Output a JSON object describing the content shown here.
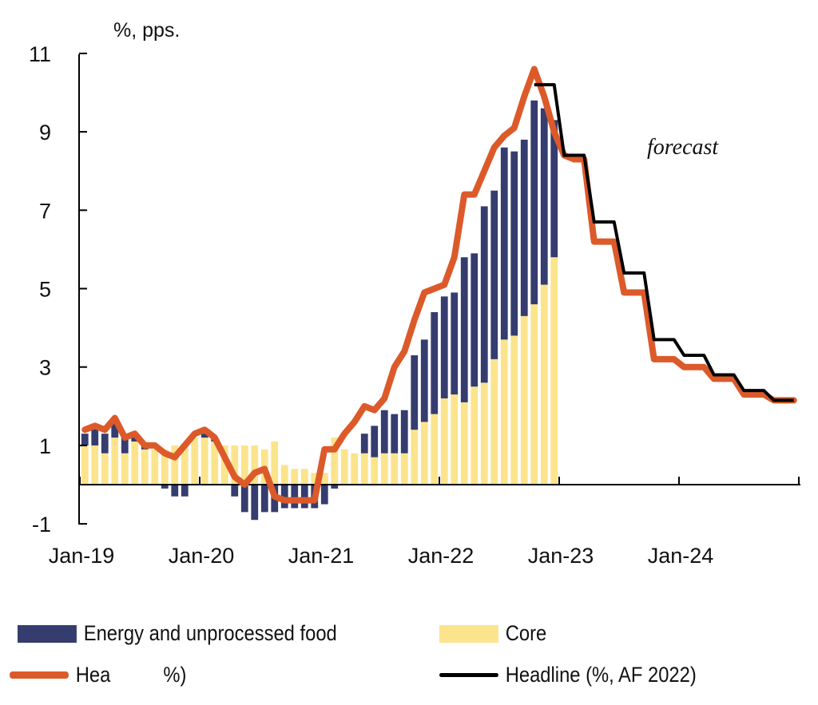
{
  "chart_data": {
    "type": "bar",
    "subtype": "stacked bar with line overlays",
    "unit_label": "%, pps.",
    "annotation": "forecast",
    "ylim": [
      -1,
      11
    ],
    "yticks": [
      -1,
      1,
      3,
      5,
      7,
      9,
      11
    ],
    "xticks": [
      "Jan-19",
      "Jan-20",
      "Jan-21",
      "Jan-22",
      "Jan-23",
      "Jan-24"
    ],
    "x_start": "Jan-19",
    "x_end": "Dec-24",
    "grid": false,
    "legend_position": "bottom",
    "colors": {
      "energy": "#353c6e",
      "core": "#fbe48c",
      "headline": "#dc5a2a",
      "headline_af2022": "#000000"
    },
    "months": [
      "Jan-19",
      "Feb-19",
      "Mar-19",
      "Apr-19",
      "May-19",
      "Jun-19",
      "Jul-19",
      "Aug-19",
      "Sep-19",
      "Oct-19",
      "Nov-19",
      "Dec-19",
      "Jan-20",
      "Feb-20",
      "Mar-20",
      "Apr-20",
      "May-20",
      "Jun-20",
      "Jul-20",
      "Aug-20",
      "Sep-20",
      "Oct-20",
      "Nov-20",
      "Dec-20",
      "Jan-21",
      "Feb-21",
      "Mar-21",
      "Apr-21",
      "May-21",
      "Jun-21",
      "Jul-21",
      "Aug-21",
      "Sep-21",
      "Oct-21",
      "Nov-21",
      "Dec-21",
      "Jan-22",
      "Feb-22",
      "Mar-22",
      "Apr-22",
      "May-22",
      "Jun-22",
      "Jul-22",
      "Aug-22",
      "Sep-22",
      "Oct-22",
      "Nov-22",
      "Dec-22"
    ],
    "series": [
      {
        "name": "Energy and unprocessed food",
        "kind": "bar",
        "values": [
          0.3,
          0.5,
          0.5,
          0.5,
          0.5,
          0.1,
          0.1,
          0.0,
          -0.1,
          -0.3,
          -0.3,
          0.0,
          0.1,
          0.1,
          0.0,
          -0.3,
          -0.7,
          -0.9,
          -0.7,
          -0.7,
          -0.6,
          -0.6,
          -0.6,
          -0.6,
          -0.5,
          -0.1,
          0.0,
          0.0,
          0.5,
          0.8,
          1.1,
          1.0,
          1.1,
          1.9,
          2.1,
          2.6,
          2.6,
          2.6,
          3.7,
          3.4,
          4.5,
          4.3,
          4.9,
          4.7,
          4.5,
          5.2,
          4.5,
          3.5
        ]
      },
      {
        "name": "Core",
        "kind": "bar",
        "values": [
          1.0,
          1.0,
          0.8,
          1.2,
          0.8,
          1.1,
          0.9,
          0.9,
          0.9,
          1.0,
          1.0,
          1.2,
          1.2,
          1.1,
          1.0,
          1.0,
          1.0,
          1.0,
          0.9,
          1.1,
          0.5,
          0.4,
          0.4,
          0.3,
          0.3,
          1.2,
          0.9,
          0.8,
          0.8,
          0.7,
          0.8,
          0.8,
          0.8,
          1.4,
          1.6,
          1.8,
          2.2,
          2.3,
          2.1,
          2.5,
          2.6,
          3.2,
          3.7,
          3.8,
          4.3,
          4.6,
          5.1,
          5.8
        ]
      },
      {
        "name": "Headline (%)",
        "kind": "line",
        "values": [
          1.4,
          1.5,
          1.4,
          1.7,
          1.2,
          1.3,
          1.0,
          1.0,
          0.8,
          0.7,
          1.0,
          1.3,
          1.4,
          1.2,
          0.7,
          0.2,
          0.0,
          0.3,
          0.4,
          -0.3,
          -0.4,
          -0.4,
          -0.4,
          -0.4,
          0.9,
          0.9,
          1.3,
          1.6,
          2.0,
          1.9,
          2.2,
          3.0,
          3.4,
          4.2,
          4.9,
          5.0,
          5.1,
          5.8,
          7.4,
          7.4,
          8.0,
          8.6,
          8.9,
          9.1,
          9.9,
          10.6,
          9.9,
          9.0,
          8.4,
          8.3,
          8.3,
          6.2,
          6.2,
          6.2,
          4.9,
          4.9,
          4.9,
          3.2,
          3.2,
          3.2,
          3.0,
          3.0,
          3.0,
          2.7,
          2.7,
          2.7,
          2.3,
          2.3,
          2.3,
          2.15,
          2.15,
          2.15
        ]
      },
      {
        "name": "Headline (%, AF 2022)",
        "kind": "line",
        "start": "Oct-22",
        "values": [
          10.2,
          10.2,
          10.2,
          8.4,
          8.4,
          8.4,
          6.7,
          6.7,
          6.7,
          5.4,
          5.4,
          5.4,
          3.7,
          3.7,
          3.7,
          3.3,
          3.3,
          3.3,
          2.8,
          2.8,
          2.8,
          2.4,
          2.4,
          2.4,
          2.15,
          2.15,
          2.15
        ]
      }
    ]
  },
  "legend": {
    "energy": "Energy and unprocessed food",
    "core": "Core",
    "headline": "Hea          %)",
    "headline_af": "Headline (%, AF 2022)"
  }
}
